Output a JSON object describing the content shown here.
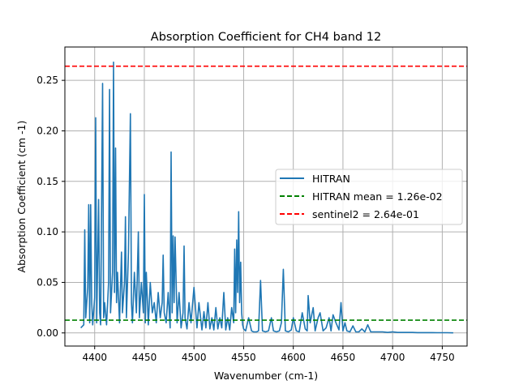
{
  "chart_data": {
    "type": "line",
    "title": "Absorption Coefficient for CH4 band 12",
    "xlabel": "Wavenumber (cm-1)",
    "ylabel": "Absorption Coefficient (cm -1)",
    "xlim": [
      4370,
      4775
    ],
    "ylim": [
      -0.013,
      0.283
    ],
    "xticks": [
      4400,
      4450,
      4500,
      4550,
      4600,
      4650,
      4700,
      4750
    ],
    "xtick_labels": [
      "4400",
      "4450",
      "4500",
      "4550",
      "4600",
      "4650",
      "4700",
      "4750"
    ],
    "yticks": [
      0.0,
      0.05,
      0.1,
      0.15,
      0.2,
      0.25
    ],
    "ytick_labels": [
      "0.00",
      "0.05",
      "0.10",
      "0.15",
      "0.20",
      "0.25"
    ],
    "grid": true,
    "legend_position": "center-right",
    "series": [
      {
        "name": "HITRAN",
        "style": "solid",
        "color": "#1f77b4",
        "x": [
          4386,
          4389,
          4390,
          4391,
          4393,
          4394,
          4395,
          4396,
          4397,
          4398,
          4400,
          4401,
          4402,
          4404,
          4405,
          4406,
          4408,
          4409,
          4410,
          4412,
          4414,
          4415,
          4416,
          4418,
          4419,
          4420,
          4421,
          4422,
          4423,
          4425,
          4427,
          4428,
          4430,
          4431,
          4432,
          4434,
          4436,
          4437,
          4438,
          4440,
          4442,
          4444,
          4445,
          4447,
          4449,
          4450,
          4451,
          4452,
          4454,
          4456,
          4458,
          4460,
          4462,
          4464,
          4466,
          4468,
          4469,
          4470,
          4472,
          4474,
          4476,
          4477,
          4478,
          4479,
          4480,
          4481,
          4483,
          4485,
          4487,
          4489,
          4490,
          4491,
          4493,
          4495,
          4497,
          4500,
          4503,
          4505,
          4508,
          4510,
          4512,
          4514,
          4516,
          4518,
          4520,
          4522,
          4524,
          4526,
          4528,
          4530,
          4532,
          4534,
          4536,
          4538,
          4540,
          4541,
          4542,
          4543,
          4544,
          4545,
          4546,
          4547,
          4548,
          4549,
          4550,
          4552,
          4555,
          4558,
          4560,
          4563,
          4565,
          4567,
          4569,
          4572,
          4575,
          4578,
          4580,
          4583,
          4586,
          4588,
          4590,
          4592,
          4595,
          4598,
          4600,
          4603,
          4606,
          4609,
          4612,
          4614,
          4615,
          4617,
          4620,
          4622,
          4625,
          4627,
          4630,
          4633,
          4636,
          4638,
          4640,
          4643,
          4646,
          4648,
          4650,
          4652,
          4654,
          4657,
          4660,
          4663,
          4666,
          4669,
          4672,
          4675,
          4678,
          4681,
          4685,
          4690,
          4695,
          4700,
          4705,
          4710,
          4715,
          4720,
          4725,
          4730,
          4735,
          4740,
          4745,
          4750,
          4755,
          4761
        ],
        "y": [
          0.005,
          0.008,
          0.102,
          0.015,
          0.045,
          0.127,
          0.01,
          0.127,
          0.03,
          0.008,
          0.035,
          0.213,
          0.01,
          0.132,
          0.02,
          0.008,
          0.247,
          0.015,
          0.03,
          0.008,
          0.05,
          0.241,
          0.02,
          0.06,
          0.268,
          0.04,
          0.183,
          0.03,
          0.06,
          0.01,
          0.08,
          0.02,
          0.05,
          0.115,
          0.015,
          0.08,
          0.217,
          0.03,
          0.01,
          0.06,
          0.02,
          0.1,
          0.015,
          0.05,
          0.02,
          0.137,
          0.01,
          0.06,
          0.008,
          0.05,
          0.02,
          0.03,
          0.01,
          0.04,
          0.015,
          0.03,
          0.077,
          0.02,
          0.01,
          0.04,
          0.005,
          0.179,
          0.02,
          0.096,
          0.03,
          0.095,
          0.01,
          0.04,
          0.005,
          0.02,
          0.086,
          0.015,
          0.004,
          0.03,
          0.01,
          0.045,
          0.005,
          0.03,
          0.003,
          0.021,
          0.005,
          0.03,
          0.004,
          0.015,
          0.003,
          0.025,
          0.004,
          0.015,
          0.005,
          0.04,
          0.003,
          0.015,
          0.003,
          0.025,
          0.01,
          0.083,
          0.02,
          0.092,
          0.04,
          0.12,
          0.03,
          0.07,
          0.02,
          0.008,
          0.004,
          0.002,
          0.015,
          0.002,
          0.001,
          0.001,
          0.002,
          0.052,
          0.002,
          0.001,
          0.002,
          0.015,
          0.002,
          0.001,
          0.002,
          0.01,
          0.063,
          0.002,
          0.001,
          0.003,
          0.015,
          0.002,
          0.001,
          0.02,
          0.004,
          0.002,
          0.037,
          0.01,
          0.025,
          0.002,
          0.015,
          0.02,
          0.002,
          0.005,
          0.015,
          0.002,
          0.018,
          0.01,
          0.003,
          0.03,
          0.002,
          0.01,
          0.002,
          0.001,
          0.007,
          0.001,
          0.001,
          0.004,
          0.001,
          0.008,
          0.001,
          0.001,
          0.001,
          0.001,
          0.0005,
          0.001,
          0.0005,
          0.0005,
          0.0005,
          0.0005,
          0.0003,
          0.0003,
          0.0003,
          0.0003,
          0.0002,
          0.0002,
          0.0002,
          0.0001
        ]
      },
      {
        "name": "HITRAN mean = 1.26e-02",
        "style": "dashed",
        "color": "#008000",
        "constant": 0.0126
      },
      {
        "name": "sentinel2 = 2.64e-01",
        "style": "dashed",
        "color": "#ff0000",
        "constant": 0.264
      }
    ]
  }
}
